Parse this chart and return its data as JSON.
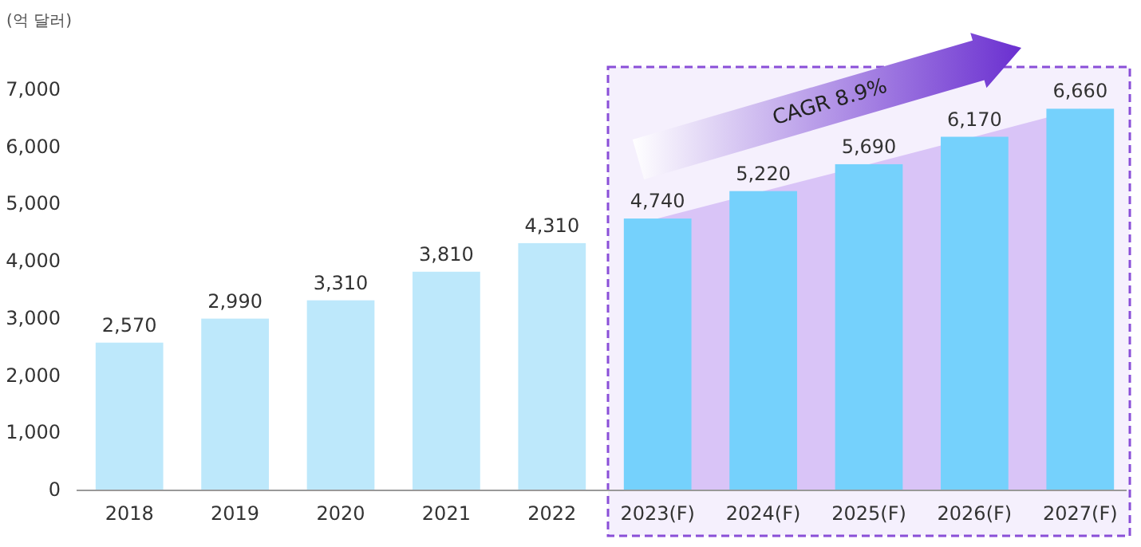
{
  "chart_data": {
    "type": "bar",
    "ylabel": "(억 달러)",
    "categories": [
      "2018",
      "2019",
      "2020",
      "2021",
      "2022",
      "2023(F)",
      "2024(F)",
      "2025(F)",
      "2026(F)",
      "2027(F)"
    ],
    "series": [
      {
        "type": "area",
        "color": "#d9c4f7",
        "values": [
          null,
          null,
          null,
          null,
          null,
          4740,
          5220,
          5690,
          6170,
          6660
        ]
      },
      {
        "values": [
          2570,
          2990,
          3310,
          3810,
          4310,
          4740,
          5220,
          5690,
          6170,
          6660
        ],
        "colors": [
          "#bde8fb",
          "#bde8fb",
          "#bde8fb",
          "#bde8fb",
          "#bde8fb",
          "#75d1fc",
          "#75d1fc",
          "#75d1fc",
          "#75d1fc",
          "#75d1fc"
        ]
      }
    ],
    "ylim": [
      0,
      7000
    ],
    "yticks": [
      {
        "value": 0,
        "label": "0"
      },
      {
        "value": 1000,
        "label": "1,000"
      },
      {
        "value": 2000,
        "label": "2,000"
      },
      {
        "value": 3000,
        "label": "3,000"
      },
      {
        "value": 4000,
        "label": "4,000"
      },
      {
        "value": 5000,
        "label": "5,000"
      },
      {
        "value": 6000,
        "label": "6,000"
      },
      {
        "value": 7000,
        "label": "7,000"
      }
    ],
    "value_labels": [
      "2,570",
      "2,990",
      "3,310",
      "3,810",
      "4,310",
      "4,740",
      "5,220",
      "5,690",
      "6,170",
      "6,660"
    ],
    "bands": [
      {
        "axis": "x",
        "from": "2023(F)",
        "to": "2027(F)",
        "color": "#8a4fd8"
      }
    ],
    "annotations": [
      "CAGR 8.9%"
    ],
    "grid": false
  }
}
